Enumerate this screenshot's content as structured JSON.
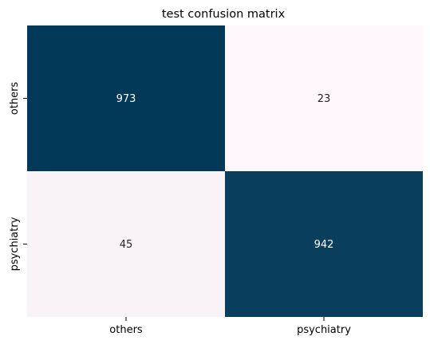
{
  "chart_data": {
    "type": "heatmap",
    "title": "test confusion matrix",
    "xlabel": "",
    "ylabel": "",
    "x_categories": [
      "others",
      "psychiatry"
    ],
    "y_categories": [
      "others",
      "psychiatry"
    ],
    "values": [
      [
        973,
        23
      ],
      [
        45,
        942
      ]
    ],
    "colormap": "PuBu",
    "color_low": "#fff7fb",
    "color_high": "#023858",
    "annotation_color_dark_cell": "#ffffff",
    "annotation_color_light_cell": "#262626",
    "colorbar": false,
    "grid": false
  }
}
